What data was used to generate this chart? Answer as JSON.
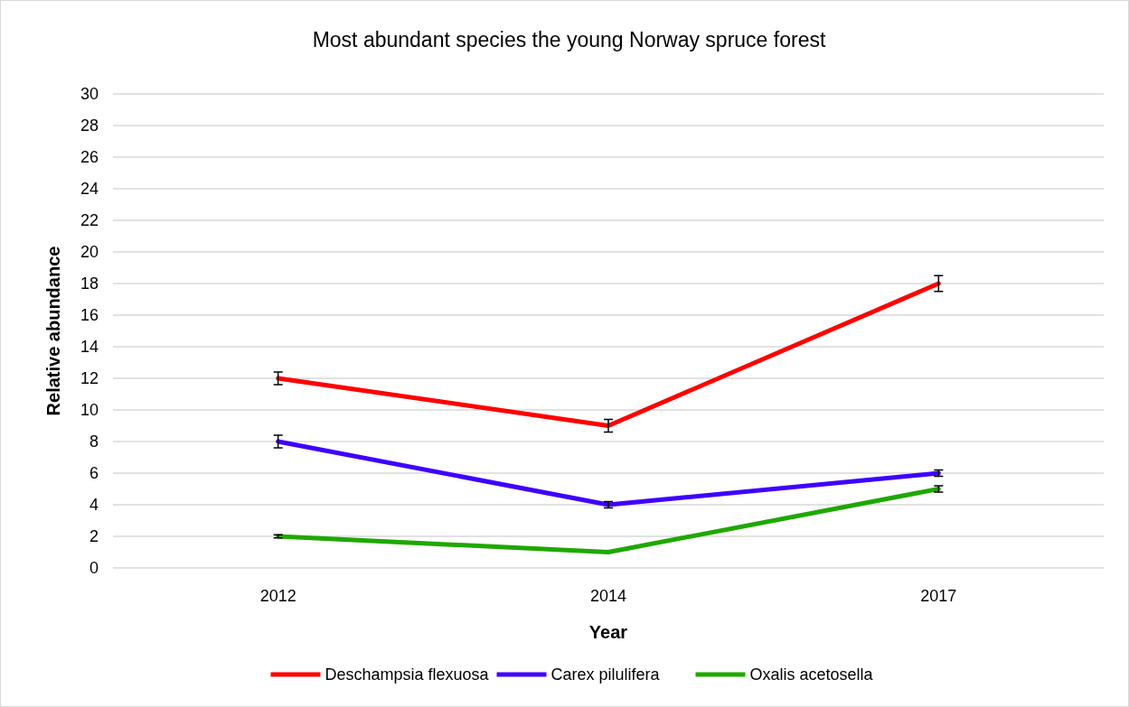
{
  "chart_data": {
    "type": "line",
    "title": "Most abundant species the young Norway spruce forest",
    "xlabel": "Year",
    "ylabel": "Relative abundance",
    "categories": [
      "2012",
      "2014",
      "2017"
    ],
    "series": [
      {
        "name": "Deschampsia flexuosa",
        "color": "#ff0000",
        "values": [
          12,
          9,
          18
        ],
        "errors": [
          0.4,
          0.4,
          0.5
        ]
      },
      {
        "name": "Carex pilulifera",
        "color": "#3f00ff",
        "values": [
          8,
          4,
          6
        ],
        "errors": [
          0.4,
          0.2,
          0.2
        ]
      },
      {
        "name": "Oxalis acetosella",
        "color": "#1fa800",
        "values": [
          2,
          1,
          5
        ],
        "errors": [
          0.1,
          null,
          0.2
        ]
      }
    ],
    "ylim": [
      0,
      30
    ],
    "yticks": [
      0,
      2,
      4,
      6,
      8,
      10,
      12,
      14,
      16,
      18,
      20,
      22,
      24,
      26,
      28,
      30
    ],
    "grid": "y",
    "legend": "bottom",
    "marker": "none",
    "line_style": "solid"
  }
}
